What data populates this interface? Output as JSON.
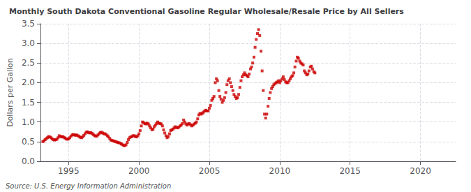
{
  "chart_data": {
    "type": "scatter",
    "title": "Monthly South Dakota Conventional Gasoline Regular Wholesale/Resale Price by All Sellers",
    "ylabel": "Dollars per Gallon",
    "annotations": [
      "Source: U.S. Energy Information Administration"
    ],
    "color": "#cc0000",
    "marker": "square",
    "grid": true,
    "xlim": [
      1993.0,
      2022.5
    ],
    "xticks": [
      1995,
      2000,
      2005,
      2010,
      2015,
      2020
    ],
    "ylim": [
      0.0,
      3.5
    ],
    "yticks": [
      {
        "value": 0,
        "label": "0.0"
      },
      0.5,
      {
        "value": 1,
        "label": "1.0"
      },
      1.5,
      {
        "value": 2,
        "label": "2.0"
      },
      2.5,
      {
        "value": 3,
        "label": "3.0"
      },
      3.5
    ],
    "x": [
      1993.17,
      1993.25,
      1993.33,
      1993.42,
      1993.5,
      1993.58,
      1993.67,
      1993.75,
      1993.83,
      1993.92,
      1994.0,
      1994.08,
      1994.17,
      1994.25,
      1994.33,
      1994.42,
      1994.5,
      1994.58,
      1994.67,
      1994.75,
      1994.83,
      1994.92,
      1995.0,
      1995.08,
      1995.17,
      1995.25,
      1995.33,
      1995.42,
      1995.5,
      1995.58,
      1995.67,
      1995.75,
      1995.83,
      1995.92,
      1996.0,
      1996.08,
      1996.17,
      1996.25,
      1996.33,
      1996.42,
      1996.5,
      1996.58,
      1996.67,
      1996.75,
      1996.83,
      1996.92,
      1997.0,
      1997.08,
      1997.17,
      1997.25,
      1997.33,
      1997.42,
      1997.5,
      1997.58,
      1997.67,
      1997.75,
      1997.83,
      1997.92,
      1998.0,
      1998.08,
      1998.17,
      1998.25,
      1998.33,
      1998.42,
      1998.5,
      1998.58,
      1998.67,
      1998.75,
      1998.83,
      1998.92,
      1999.0,
      1999.08,
      1999.17,
      1999.25,
      1999.33,
      1999.42,
      1999.5,
      1999.58,
      1999.67,
      1999.75,
      1999.83,
      1999.92,
      2000.0,
      2000.08,
      2000.17,
      2000.25,
      2000.33,
      2000.42,
      2000.5,
      2000.58,
      2000.67,
      2000.75,
      2000.83,
      2000.92,
      2001.0,
      2001.08,
      2001.17,
      2001.25,
      2001.33,
      2001.42,
      2001.5,
      2001.58,
      2001.67,
      2001.75,
      2001.83,
      2001.92,
      2002.0,
      2002.08,
      2002.17,
      2002.25,
      2002.33,
      2002.42,
      2002.5,
      2002.58,
      2002.67,
      2002.75,
      2002.83,
      2002.92,
      2003.0,
      2003.08,
      2003.17,
      2003.25,
      2003.33,
      2003.42,
      2003.5,
      2003.58,
      2003.67,
      2003.75,
      2003.83,
      2003.92,
      2004.0,
      2004.08,
      2004.17,
      2004.25,
      2004.33,
      2004.42,
      2004.5,
      2004.58,
      2004.67,
      2004.75,
      2004.83,
      2004.92,
      2005.0,
      2005.08,
      2005.17,
      2005.25,
      2005.33,
      2005.42,
      2005.5,
      2005.58,
      2005.67,
      2005.75,
      2005.83,
      2005.92,
      2006.0,
      2006.08,
      2006.17,
      2006.25,
      2006.33,
      2006.42,
      2006.5,
      2006.58,
      2006.67,
      2006.75,
      2006.83,
      2006.92,
      2007.0,
      2007.08,
      2007.17,
      2007.25,
      2007.33,
      2007.42,
      2007.5,
      2007.58,
      2007.67,
      2007.75,
      2007.83,
      2007.92,
      2008.0,
      2008.08,
      2008.17,
      2008.25,
      2008.33,
      2008.42,
      2008.5,
      2008.58,
      2008.67,
      2008.75,
      2008.83,
      2008.92,
      2009.0,
      2009.08,
      2009.17,
      2009.25,
      2009.33,
      2009.42,
      2009.5,
      2009.58,
      2009.67,
      2009.75,
      2009.83,
      2009.92,
      2010.0,
      2010.08,
      2010.17,
      2010.25,
      2010.33,
      2010.42,
      2010.5,
      2010.58,
      2010.67,
      2010.75,
      2010.83,
      2010.92,
      2011.0,
      2011.08,
      2011.17,
      2011.25,
      2011.33,
      2011.42,
      2011.5,
      2011.58,
      2011.67,
      2011.75,
      2011.83,
      2011.92,
      2012.0,
      2012.08,
      2012.17,
      2012.25,
      2012.33,
      2012.42,
      2012.5
    ],
    "values": [
      0.5,
      0.52,
      0.55,
      0.58,
      0.6,
      0.63,
      0.62,
      0.6,
      0.57,
      0.55,
      0.54,
      0.55,
      0.56,
      0.6,
      0.65,
      0.63,
      0.62,
      0.63,
      0.61,
      0.59,
      0.57,
      0.56,
      0.57,
      0.6,
      0.64,
      0.67,
      0.68,
      0.67,
      0.66,
      0.67,
      0.65,
      0.63,
      0.61,
      0.6,
      0.62,
      0.66,
      0.7,
      0.74,
      0.75,
      0.73,
      0.72,
      0.73,
      0.71,
      0.68,
      0.66,
      0.64,
      0.64,
      0.67,
      0.7,
      0.73,
      0.74,
      0.72,
      0.7,
      0.7,
      0.68,
      0.65,
      0.62,
      0.58,
      0.54,
      0.53,
      0.52,
      0.51,
      0.5,
      0.49,
      0.48,
      0.47,
      0.46,
      0.44,
      0.42,
      0.4,
      0.4,
      0.42,
      0.48,
      0.55,
      0.6,
      0.62,
      0.63,
      0.65,
      0.65,
      0.63,
      0.62,
      0.65,
      0.7,
      0.78,
      0.9,
      1.0,
      0.98,
      0.96,
      0.95,
      0.97,
      0.95,
      0.9,
      0.85,
      0.8,
      0.82,
      0.88,
      0.92,
      0.96,
      1.0,
      0.97,
      0.96,
      0.95,
      0.9,
      0.8,
      0.72,
      0.65,
      0.6,
      0.63,
      0.7,
      0.78,
      0.8,
      0.82,
      0.85,
      0.88,
      0.86,
      0.85,
      0.87,
      0.9,
      0.92,
      0.96,
      1.05,
      1.0,
      0.95,
      0.92,
      0.95,
      0.96,
      0.93,
      0.9,
      0.92,
      0.95,
      0.97,
      1.0,
      1.08,
      1.18,
      1.22,
      1.2,
      1.22,
      1.25,
      1.28,
      1.3,
      1.28,
      1.28,
      1.35,
      1.42,
      1.55,
      1.6,
      1.65,
      2.0,
      2.1,
      2.05,
      1.8,
      1.65,
      1.58,
      1.5,
      1.55,
      1.62,
      1.75,
      1.95,
      2.05,
      2.1,
      2.0,
      1.9,
      1.8,
      1.7,
      1.65,
      1.6,
      1.62,
      1.7,
      1.88,
      2.05,
      2.15,
      2.2,
      2.25,
      2.2,
      2.18,
      2.15,
      2.22,
      2.35,
      2.4,
      2.5,
      2.65,
      2.9,
      3.1,
      3.25,
      3.35,
      3.2,
      2.8,
      2.3,
      1.8,
      1.2,
      1.1,
      1.2,
      1.4,
      1.6,
      1.75,
      1.85,
      1.9,
      1.95,
      1.98,
      2.0,
      2.02,
      2.05,
      2.0,
      2.05,
      2.1,
      2.15,
      2.08,
      2.02,
      2.0,
      2.0,
      2.05,
      2.1,
      2.15,
      2.18,
      2.25,
      2.4,
      2.55,
      2.65,
      2.62,
      2.55,
      2.5,
      2.48,
      2.45,
      2.3,
      2.25,
      2.2,
      2.22,
      2.3,
      2.4,
      2.42,
      2.35,
      2.28,
      2.25
    ]
  }
}
